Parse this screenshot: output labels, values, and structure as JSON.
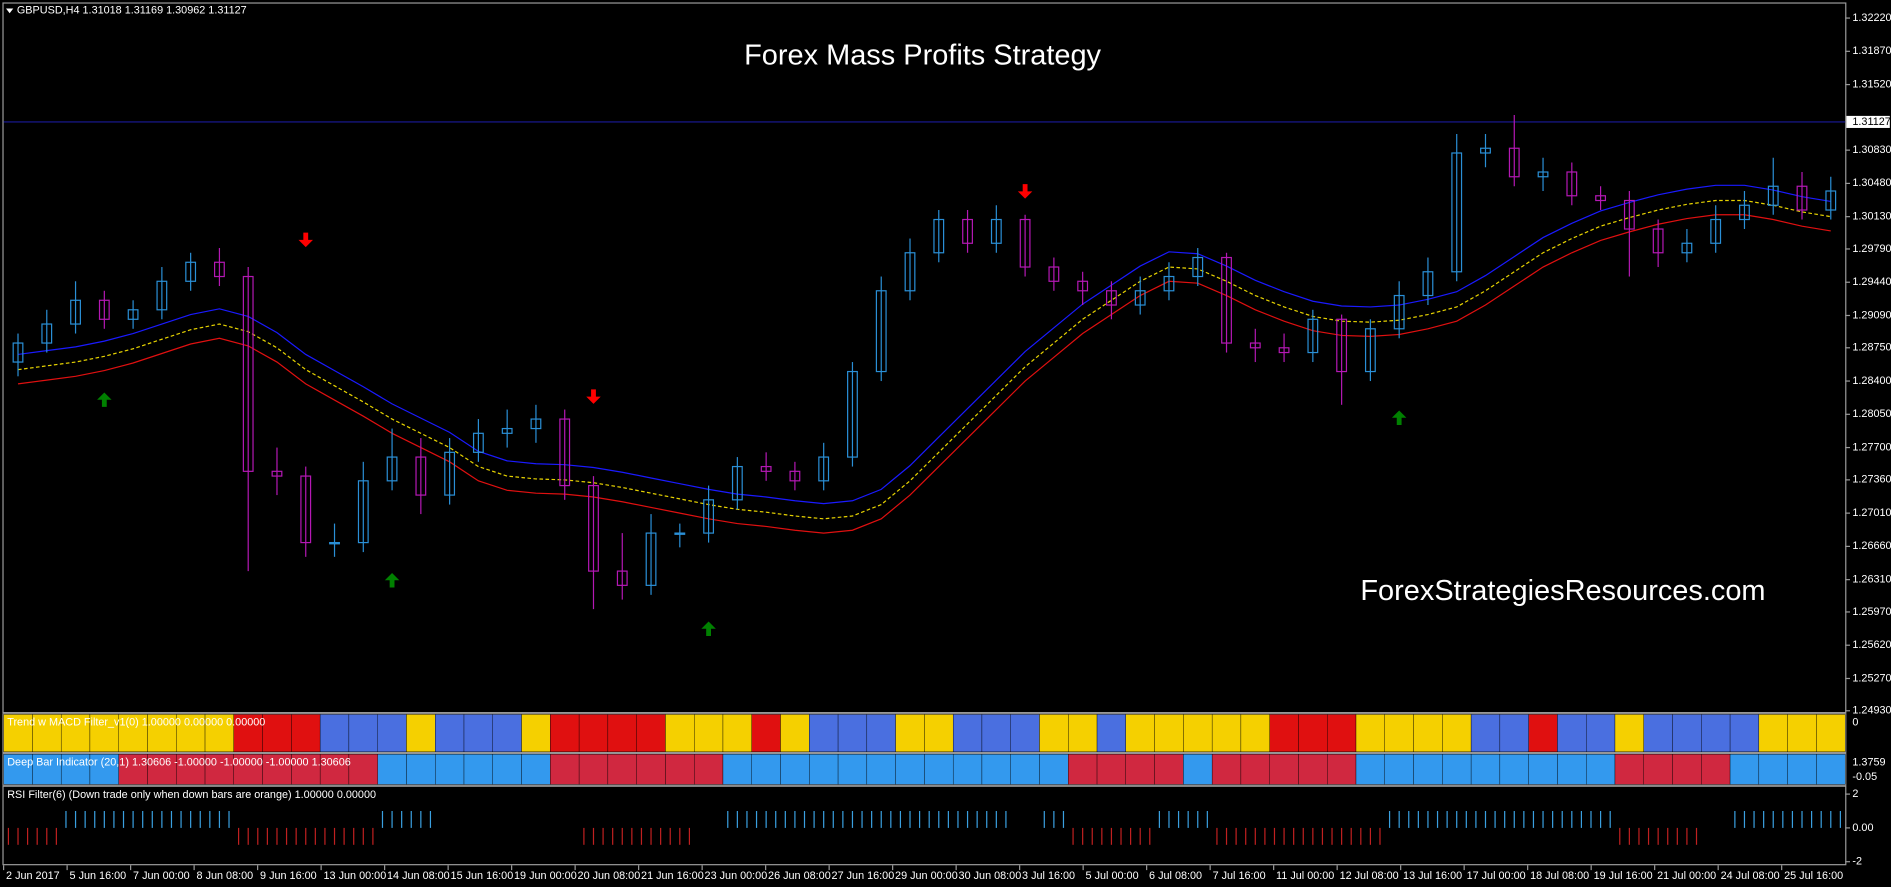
{
  "header": "GBPUSD,H4  1.31018 1.31169 1.30962 1.31127",
  "chart_data": {
    "type": "candlestick",
    "title": "Forex Mass Profits Strategy",
    "watermark": "ForexStrategiesResources.com",
    "title_color": "#f5c000",
    "up_color": "#2a8fd6",
    "down_color": "#b418b4",
    "x_labels": [
      "2 Jun 2017",
      "5 Jun 16:00",
      "7 Jun 00:00",
      "8 Jun 08:00",
      "9 Jun 16:00",
      "13 Jun 00:00",
      "14 Jun 08:00",
      "15 Jun 16:00",
      "19 Jun 00:00",
      "20 Jun 08:00",
      "21 Jun 16:00",
      "23 Jun 00:00",
      "26 Jun 08:00",
      "27 Jun 16:00",
      "29 Jun 00:00",
      "30 Jun 08:00",
      "3 Jul 16:00",
      "5 Jul 00:00",
      "6 Jul 08:00",
      "7 Jul 16:00",
      "11 Jul 00:00",
      "12 Jul 08:00",
      "13 Jul 16:00",
      "17 Jul 00:00",
      "18 Jul 08:00",
      "19 Jul 16:00",
      "21 Jul 00:00",
      "24 Jul 08:00",
      "25 Jul 16:00"
    ],
    "open": [
      1.286,
      1.288,
      1.29,
      1.2925,
      1.2905,
      1.2915,
      1.2945,
      1.2965,
      1.295,
      1.2745,
      1.274,
      1.267,
      1.267,
      1.2735,
      1.276,
      1.272,
      1.2765,
      1.2785,
      1.279,
      1.28,
      1.273,
      1.264,
      1.2625,
      1.268,
      1.268,
      1.2715,
      1.275,
      1.2745,
      1.2735,
      1.276,
      1.285,
      1.2935,
      1.2975,
      1.301,
      1.2985,
      1.301,
      1.296,
      1.2945,
      1.2935,
      1.292,
      1.2935,
      1.295,
      1.297,
      1.288,
      1.2875,
      1.287,
      1.2905,
      1.285,
      1.2895,
      1.293,
      1.2955,
      1.308,
      1.3085,
      1.3055,
      1.306,
      1.3035,
      1.303,
      1.3,
      1.2975,
      1.2985,
      1.301,
      1.3025,
      1.3045,
      1.302
    ],
    "high": [
      1.289,
      1.2915,
      1.2945,
      1.2935,
      1.2925,
      1.296,
      1.2975,
      1.298,
      1.296,
      1.277,
      1.275,
      1.269,
      1.2755,
      1.279,
      1.278,
      1.278,
      1.28,
      1.281,
      1.2815,
      1.281,
      1.274,
      1.268,
      1.27,
      1.269,
      1.273,
      1.276,
      1.2765,
      1.2755,
      1.2775,
      1.286,
      1.295,
      1.299,
      1.302,
      1.302,
      1.3025,
      1.3015,
      1.297,
      1.2955,
      1.2945,
      1.295,
      1.2965,
      1.298,
      1.2975,
      1.2895,
      1.289,
      1.2915,
      1.291,
      1.2905,
      1.2945,
      1.297,
      1.31,
      1.31,
      1.312,
      1.3075,
      1.307,
      1.3045,
      1.304,
      1.301,
      1.3,
      1.3025,
      1.304,
      1.3075,
      1.306,
      1.3055
    ],
    "low": [
      1.2845,
      1.287,
      1.289,
      1.2895,
      1.2895,
      1.2905,
      1.2935,
      1.294,
      1.264,
      1.272,
      1.2655,
      1.2655,
      1.266,
      1.2725,
      1.27,
      1.271,
      1.2755,
      1.277,
      1.2775,
      1.2715,
      1.26,
      1.261,
      1.2615,
      1.2665,
      1.267,
      1.2705,
      1.2735,
      1.2725,
      1.2725,
      1.275,
      1.284,
      1.2925,
      1.2965,
      1.2975,
      1.2975,
      1.295,
      1.2935,
      1.292,
      1.2905,
      1.291,
      1.2925,
      1.294,
      1.287,
      1.286,
      1.286,
      1.286,
      1.2815,
      1.284,
      1.2885,
      1.292,
      1.2945,
      1.3065,
      1.3045,
      1.304,
      1.3025,
      1.302,
      1.295,
      1.296,
      1.2965,
      1.2975,
      1.3,
      1.3015,
      1.301,
      1.301
    ],
    "close": [
      1.288,
      1.29,
      1.2925,
      1.2905,
      1.2915,
      1.2945,
      1.2965,
      1.295,
      1.2745,
      1.274,
      1.267,
      1.267,
      1.2735,
      1.276,
      1.272,
      1.2765,
      1.2785,
      1.279,
      1.28,
      1.273,
      1.264,
      1.2625,
      1.268,
      1.268,
      1.2715,
      1.275,
      1.2745,
      1.2735,
      1.276,
      1.285,
      1.2935,
      1.2975,
      1.301,
      1.2985,
      1.301,
      1.296,
      1.2945,
      1.2935,
      1.292,
      1.2935,
      1.295,
      1.297,
      1.288,
      1.2875,
      1.287,
      1.2905,
      1.285,
      1.2895,
      1.293,
      1.2955,
      1.308,
      1.3085,
      1.3055,
      1.306,
      1.3035,
      1.303,
      1.3,
      1.2975,
      1.2985,
      1.301,
      1.3025,
      1.3045,
      1.302,
      1.304
    ],
    "lines": [
      {
        "color": "#1a1aff",
        "dashed": false,
        "values": [
          1.2868,
          1.2872,
          1.2876,
          1.2882,
          1.289,
          1.29,
          1.291,
          1.2916,
          1.2908,
          1.2891,
          1.2868,
          1.2851,
          1.2834,
          1.2816,
          1.2801,
          1.2786,
          1.2766,
          1.2756,
          1.2753,
          1.2752,
          1.2749,
          1.2744,
          1.2738,
          1.2732,
          1.2726,
          1.2721,
          1.2718,
          1.2714,
          1.2711,
          1.2714,
          1.2726,
          1.2751,
          1.2781,
          1.2811,
          1.2841,
          1.2871,
          1.2896,
          1.2921,
          1.2941,
          1.2961,
          1.2976,
          1.2974,
          1.2961,
          1.2946,
          1.2934,
          1.2924,
          1.2919,
          1.2918,
          1.292,
          1.2926,
          1.2934,
          1.2951,
          1.2971,
          1.2991,
          1.3006,
          1.3019,
          1.3028,
          1.3036,
          1.3042,
          1.3046,
          1.3046,
          1.3041,
          1.3034,
          1.3029
        ]
      },
      {
        "color": "#e6d200",
        "dashed": true,
        "values": [
          1.2852,
          1.2856,
          1.286,
          1.2866,
          1.2874,
          1.2884,
          1.2894,
          1.29,
          1.2892,
          1.2875,
          1.2852,
          1.2835,
          1.2818,
          1.28,
          1.2785,
          1.277,
          1.275,
          1.274,
          1.2737,
          1.2736,
          1.2733,
          1.2728,
          1.2722,
          1.2716,
          1.271,
          1.2705,
          1.2702,
          1.2698,
          1.2695,
          1.2698,
          1.271,
          1.2735,
          1.2765,
          1.2795,
          1.2825,
          1.2855,
          1.288,
          1.2905,
          1.2925,
          1.2945,
          1.296,
          1.2958,
          1.2945,
          1.293,
          1.2918,
          1.2908,
          1.2903,
          1.2902,
          1.2904,
          1.291,
          1.2918,
          1.2935,
          1.2955,
          1.2975,
          1.299,
          1.3003,
          1.3012,
          1.302,
          1.3026,
          1.303,
          1.303,
          1.3025,
          1.3018,
          1.3013
        ]
      },
      {
        "color": "#e01010",
        "dashed": false,
        "values": [
          1.2837,
          1.2841,
          1.2845,
          1.2851,
          1.2859,
          1.2869,
          1.2879,
          1.2885,
          1.2877,
          1.286,
          1.2837,
          1.282,
          1.2803,
          1.2785,
          1.277,
          1.2755,
          1.2735,
          1.2725,
          1.2722,
          1.2721,
          1.2718,
          1.2713,
          1.2707,
          1.2701,
          1.2695,
          1.269,
          1.2687,
          1.2683,
          1.268,
          1.2683,
          1.2695,
          1.272,
          1.275,
          1.278,
          1.281,
          1.284,
          1.2865,
          1.289,
          1.291,
          1.293,
          1.2945,
          1.2943,
          1.293,
          1.2915,
          1.2903,
          1.2893,
          1.2888,
          1.2887,
          1.2889,
          1.2895,
          1.2903,
          1.292,
          1.294,
          1.296,
          1.2975,
          1.2988,
          1.2997,
          1.3005,
          1.3011,
          1.3015,
          1.3015,
          1.301,
          1.3003,
          1.2998
        ]
      }
    ],
    "ylim": [
      1.24917,
      1.32372
    ],
    "yticks": [
      {
        "value": 1.3222,
        "label": "1.32220"
      },
      {
        "value": 1.3187,
        "label": "1.31870"
      },
      {
        "value": 1.3152,
        "label": "1.31520"
      },
      {
        "value": 1.3083,
        "label": "1.30830"
      },
      {
        "value": 1.3048,
        "label": "1.30480"
      },
      {
        "value": 1.3013,
        "label": "1.30130"
      },
      {
        "value": 1.2979,
        "label": "1.29790"
      },
      {
        "value": 1.2944,
        "label": "1.29440"
      },
      {
        "value": 1.2909,
        "label": "1.29090"
      },
      {
        "value": 1.2875,
        "label": "1.28750"
      },
      {
        "value": 1.284,
        "label": "1.28400"
      },
      {
        "value": 1.2805,
        "label": "1.28050"
      },
      {
        "value": 1.277,
        "label": "1.27700"
      },
      {
        "value": 1.2736,
        "label": "1.27360"
      },
      {
        "value": 1.2701,
        "label": "1.27010"
      },
      {
        "value": 1.2666,
        "label": "1.26660"
      },
      {
        "value": 1.2631,
        "label": "1.26310"
      },
      {
        "value": 1.2597,
        "label": "1.25970"
      },
      {
        "value": 1.2562,
        "label": "1.25620"
      },
      {
        "value": 1.2527,
        "label": "1.25270"
      },
      {
        "value": 1.2493,
        "label": "1.24930"
      }
    ],
    "current_price": {
      "value": 1.31127,
      "label": "1.31127",
      "color": "#1a1a9a"
    },
    "sell_arrows": {
      "color": "#ff0000",
      "index": [
        10,
        20,
        35
      ],
      "price": [
        1.2981,
        1.2816,
        1.3032
      ]
    },
    "buy_arrows": {
      "color": "#008000",
      "index": [
        3,
        13,
        24,
        48
      ],
      "price": [
        1.2828,
        1.2638,
        1.2587,
        1.2809
      ]
    },
    "panels": [
      {
        "label": "Trend w MACD Filter_v1(0) 1.00000 0.00000 0.00000",
        "axis_labels": [
          "0"
        ],
        "colors": {
          "1": "#4a6fe0",
          "0": "#f5d000",
          "-1": "#e01010"
        },
        "states": [
          0,
          0,
          0,
          0,
          0,
          0,
          0,
          0,
          -1,
          -1,
          -1,
          1,
          1,
          1,
          0,
          1,
          1,
          1,
          0,
          -1,
          -1,
          -1,
          -1,
          0,
          0,
          0,
          -1,
          0,
          1,
          1,
          1,
          0,
          0,
          1,
          1,
          1,
          0,
          0,
          1,
          0,
          0,
          0,
          0,
          0,
          -1,
          -1,
          -1,
          0,
          0,
          0,
          0,
          1,
          1,
          -1,
          1,
          1,
          0,
          1,
          1,
          1,
          1,
          0,
          0,
          0
        ]
      },
      {
        "label": "Deep Bar Indicator (20,1) 1.30606 -1.00000 -1.00000 -1.00000 1.30606",
        "axis_labels": [
          "1.3759",
          "-0.05"
        ],
        "colors": {
          "1": "#3399ee",
          "-1": "#d02840"
        },
        "states": [
          1,
          1,
          1,
          1,
          -1,
          -1,
          -1,
          -1,
          -1,
          -1,
          -1,
          -1,
          -1,
          1,
          1,
          1,
          1,
          1,
          1,
          -1,
          -1,
          -1,
          -1,
          -1,
          -1,
          1,
          1,
          1,
          1,
          1,
          1,
          1,
          1,
          1,
          1,
          1,
          1,
          -1,
          -1,
          -1,
          -1,
          1,
          -1,
          -1,
          -1,
          -1,
          -1,
          1,
          1,
          1,
          1,
          1,
          1,
          1,
          1,
          1,
          -1,
          -1,
          -1,
          -1,
          1,
          1,
          1,
          1
        ]
      },
      {
        "label": "RSI Filter(6)  (Down trade only when down bars are orange) 1.00000 0.00000",
        "ylim": [
          -2.14,
          2.43
        ],
        "yticks": [
          2,
          {
            "value": 0,
            "label": "0.00"
          },
          -2
        ],
        "colors": {
          "1": "#3aa0e0",
          "-1": "#c02020"
        },
        "states": [
          -1,
          -1,
          1,
          1,
          1,
          1,
          1,
          1,
          -1,
          -1,
          -1,
          -1,
          -1,
          1,
          1,
          0,
          0,
          0,
          0,
          0,
          -1,
          -1,
          -1,
          -1,
          0,
          1,
          1,
          1,
          1,
          1,
          1,
          1,
          1,
          1,
          1,
          0,
          1,
          -1,
          -1,
          -1,
          1,
          1,
          -1,
          -1,
          -1,
          -1,
          -1,
          -1,
          1,
          1,
          1,
          1,
          1,
          1,
          1,
          1,
          -1,
          -1,
          -1,
          0,
          1,
          1,
          1,
          1
        ]
      }
    ]
  }
}
